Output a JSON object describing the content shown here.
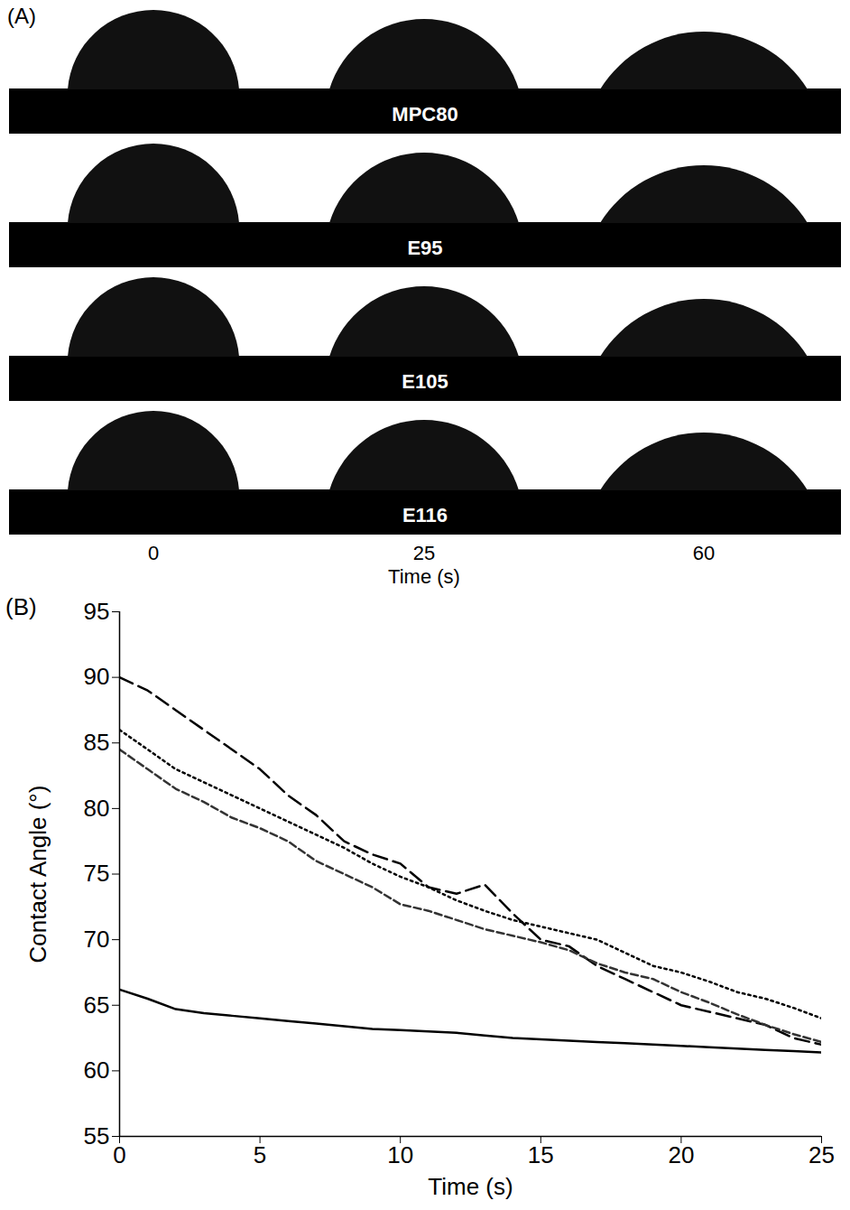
{
  "panel_a": {
    "label": "(A)",
    "rows": [
      "MPC80",
      "E95",
      "E105",
      "E116"
    ],
    "times": [
      "0",
      "25",
      "60"
    ],
    "x_label": "Time (s)"
  },
  "chart_data": {
    "type": "line",
    "panel_label": "(B)",
    "x_label": "Time (s)",
    "y_label": "Contact Angle (°)",
    "x": [
      0,
      1,
      2,
      3,
      4,
      5,
      6,
      7,
      8,
      9,
      10,
      11,
      12,
      13,
      14,
      15,
      16,
      17,
      18,
      19,
      20,
      21,
      22,
      23,
      24,
      25
    ],
    "series": [
      {
        "color": "#000000",
        "line_style": "solid",
        "values": [
          66.2,
          65.5,
          64.7,
          64.4,
          64.2,
          64,
          63.8,
          63.6,
          63.4,
          63.2,
          63.1,
          63,
          62.9,
          62.7,
          62.5,
          62.4,
          62.3,
          62.2,
          62.1,
          62,
          61.9,
          61.8,
          61.7,
          61.6,
          61.5,
          61.4
        ]
      },
      {
        "color": "#000000",
        "line_style": "long_dash",
        "values": [
          90,
          89,
          87.5,
          86,
          84.5,
          83,
          81,
          79.5,
          77.5,
          76.5,
          75.8,
          74,
          73.5,
          74.2,
          72,
          70,
          69.5,
          68,
          67,
          66,
          65,
          64.5,
          64,
          63.5,
          62.5,
          62
        ]
      },
      {
        "color": "#000000",
        "line_style": "dotted",
        "values": [
          86,
          84.5,
          83,
          82,
          81,
          80,
          79,
          78,
          77,
          75.8,
          74.8,
          74,
          73,
          72.2,
          71.5,
          71,
          70.5,
          70,
          69,
          68,
          67.5,
          66.8,
          66,
          65.5,
          64.8,
          64
        ]
      },
      {
        "color": "#333333",
        "line_style": "short_dash",
        "values": [
          84.5,
          83,
          81.5,
          80.5,
          79.3,
          78.5,
          77.5,
          76,
          75,
          74,
          72.7,
          72.2,
          71.5,
          70.8,
          70.3,
          69.8,
          69.2,
          68.2,
          67.5,
          67,
          66,
          65.2,
          64.3,
          63.5,
          62.8,
          62.2
        ]
      }
    ],
    "xlim": [
      0,
      25
    ],
    "xticks": [
      0,
      5,
      10,
      15,
      20,
      25
    ],
    "ylim": [
      55,
      95
    ],
    "yticks": [
      55,
      60,
      65,
      70,
      75,
      80,
      85,
      90,
      95
    ],
    "grid": false
  }
}
